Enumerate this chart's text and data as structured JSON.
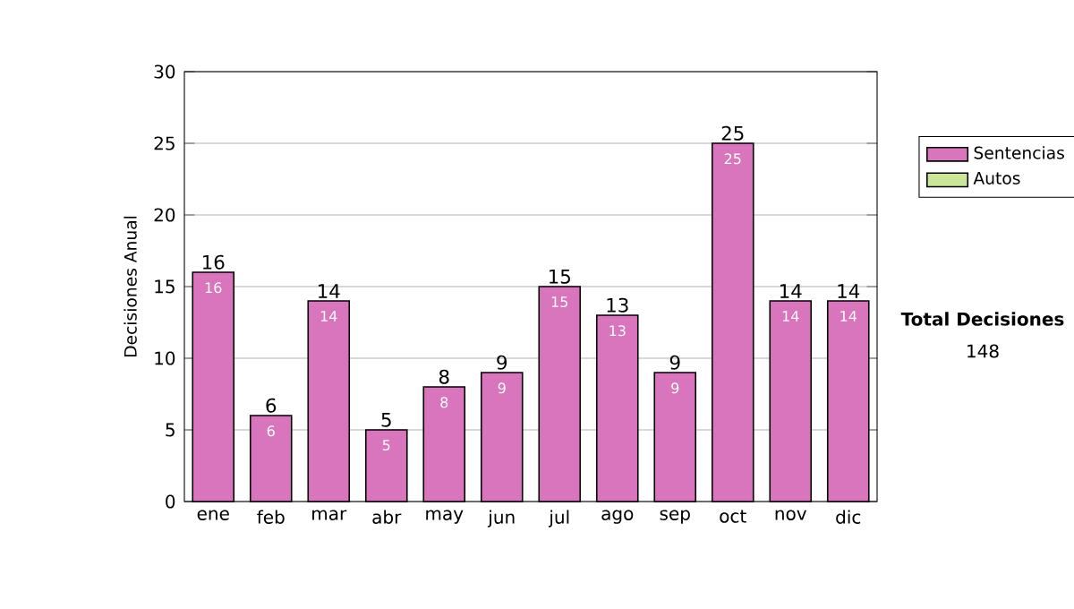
{
  "chart_data": {
    "type": "bar",
    "stacked": true,
    "ylabel": "Decisiones Anual",
    "categories": [
      "ene",
      "feb",
      "mar",
      "abr",
      "may",
      "jun",
      "jul",
      "ago",
      "sep",
      "oct",
      "nov",
      "dic"
    ],
    "series": [
      {
        "name": "Sentencias",
        "color": "#d975bd",
        "values": [
          16,
          6,
          14,
          5,
          8,
          9,
          15,
          13,
          9,
          25,
          14,
          14
        ],
        "value_labels": [
          "16",
          "6",
          "14",
          "5",
          "8",
          "9",
          "15",
          "13",
          "9",
          "25",
          "14",
          "14"
        ]
      },
      {
        "name": "Autos",
        "color": "#cce699",
        "values": [
          0,
          0,
          0,
          0,
          0,
          0,
          0,
          0,
          0,
          0,
          0,
          0
        ]
      }
    ],
    "totals": [
      "16",
      "6",
      "14",
      "5",
      "8",
      "9",
      "15",
      "13",
      "9",
      "25",
      "14",
      "14"
    ],
    "ylim": [
      0,
      30
    ],
    "yticks": [
      0,
      5,
      10,
      15,
      20,
      25,
      30
    ],
    "grid": "y",
    "legend": "right",
    "annotations": [
      "**Total Decisiones**",
      "148"
    ]
  }
}
